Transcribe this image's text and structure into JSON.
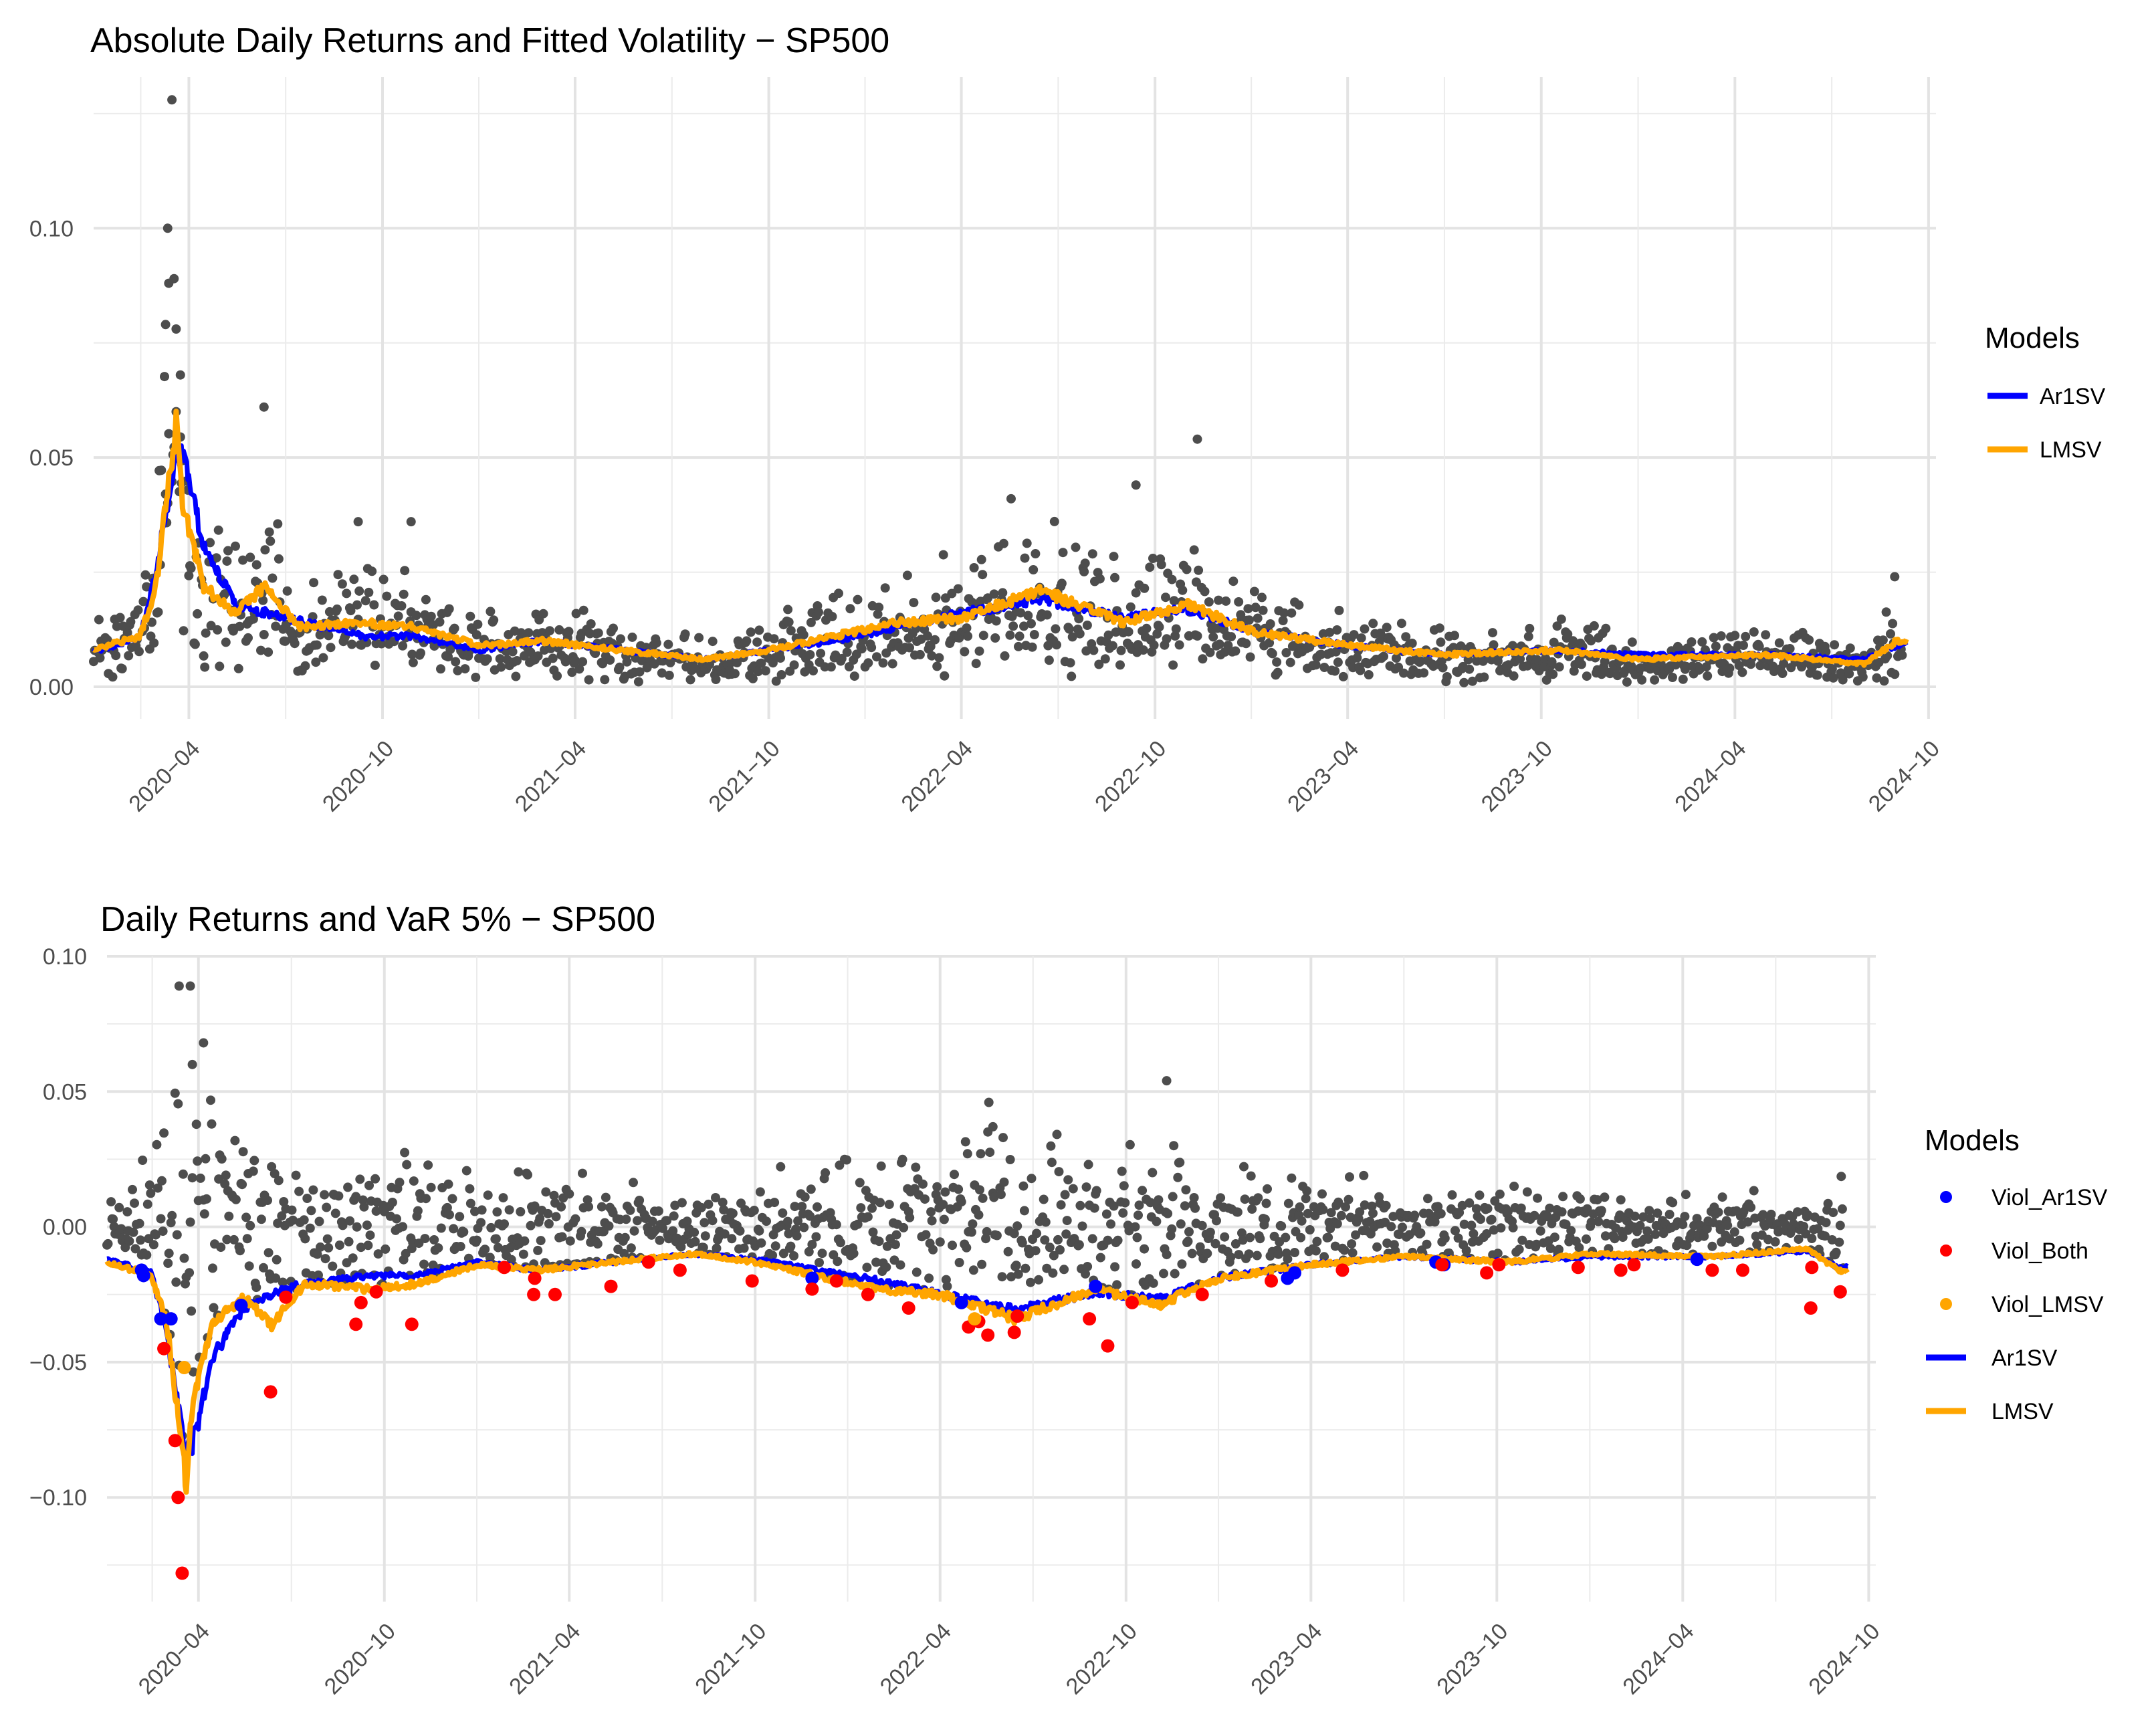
{
  "chart_data": [
    {
      "type": "scatter",
      "title": "Absolute Daily Returns and Fitted Volatility − SP500",
      "xlabel": "",
      "ylabel": "",
      "x_ticks": [
        "2020−04",
        "2020−10",
        "2021−04",
        "2021−10",
        "2022−04",
        "2022−10",
        "2023−04",
        "2023−10",
        "2024−04",
        "2024−10"
      ],
      "y_ticks": [
        "0.00",
        "0.05",
        "0.10"
      ],
      "ylim": [
        -0.007,
        0.133
      ],
      "xlim": [
        "2020-01-02",
        "2024-10-08"
      ],
      "grid": true,
      "legend": {
        "title": "Models",
        "position": "right",
        "entries": [
          {
            "name": "Ar1SV",
            "color": "#0000ff",
            "kind": "line"
          },
          {
            "name": "LMSV",
            "color": "#ffa500",
            "kind": "line"
          }
        ]
      },
      "points_color": "#4d4d4d",
      "highlight_points": [
        {
          "x": "2020-03-16",
          "y": 0.128
        },
        {
          "x": "2020-03-12",
          "y": 0.1
        },
        {
          "x": "2020-03-18",
          "y": 0.089
        },
        {
          "x": "2020-03-13",
          "y": 0.088
        },
        {
          "x": "2020-03-10",
          "y": 0.079
        },
        {
          "x": "2020-03-24",
          "y": 0.068
        },
        {
          "x": "2020-06-11",
          "y": 0.061
        },
        {
          "x": "2020-03-20",
          "y": 0.06
        },
        {
          "x": "2022-11-10",
          "y": 0.054
        },
        {
          "x": "2022-09-13",
          "y": 0.044
        },
        {
          "x": "2022-05-18",
          "y": 0.041
        },
        {
          "x": "2020-09-08",
          "y": 0.036
        },
        {
          "x": "2020-10-28",
          "y": 0.036
        },
        {
          "x": "2024-08-30",
          "y": 0.024
        }
      ],
      "series": [
        {
          "name": "Ar1SV",
          "color": "#0000ff",
          "points": [
            [
              "2020-01-02",
              0.0075
            ],
            [
              "2020-02-15",
              0.011
            ],
            [
              "2020-03-01",
              0.025
            ],
            [
              "2020-03-20",
              0.052
            ],
            [
              "2020-03-28",
              0.05
            ],
            [
              "2020-04-15",
              0.03
            ],
            [
              "2020-05-15",
              0.018
            ],
            [
              "2020-07-01",
              0.015
            ],
            [
              "2020-09-15",
              0.011
            ],
            [
              "2020-11-01",
              0.011
            ],
            [
              "2021-01-01",
              0.008
            ],
            [
              "2021-03-01",
              0.01
            ],
            [
              "2021-05-15",
              0.008
            ],
            [
              "2021-08-01",
              0.006
            ],
            [
              "2021-10-01",
              0.008
            ],
            [
              "2021-12-01",
              0.01
            ],
            [
              "2022-02-01",
              0.013
            ],
            [
              "2022-04-01",
              0.016
            ],
            [
              "2022-06-15",
              0.019
            ],
            [
              "2022-09-01",
              0.015
            ],
            [
              "2022-11-01",
              0.017
            ],
            [
              "2023-01-01",
              0.012
            ],
            [
              "2023-04-01",
              0.009
            ],
            [
              "2023-07-01",
              0.007
            ],
            [
              "2023-10-15",
              0.008
            ],
            [
              "2024-01-01",
              0.007
            ],
            [
              "2024-05-01",
              0.007
            ],
            [
              "2024-08-01",
              0.006
            ],
            [
              "2024-09-01",
              0.009
            ]
          ]
        },
        {
          "name": "LMSV",
          "color": "#ffa500",
          "points": [
            [
              "2020-01-02",
              0.008
            ],
            [
              "2020-02-15",
              0.011
            ],
            [
              "2020-03-01",
              0.022
            ],
            [
              "2020-03-20",
              0.058
            ],
            [
              "2020-03-26",
              0.04
            ],
            [
              "2020-04-15",
              0.022
            ],
            [
              "2020-05-15",
              0.016
            ],
            [
              "2020-06-12",
              0.022
            ],
            [
              "2020-07-15",
              0.013
            ],
            [
              "2020-09-15",
              0.014
            ],
            [
              "2020-11-01",
              0.013
            ],
            [
              "2021-01-01",
              0.009
            ],
            [
              "2021-03-01",
              0.01
            ],
            [
              "2021-05-15",
              0.008
            ],
            [
              "2021-08-01",
              0.006
            ],
            [
              "2021-10-01",
              0.008
            ],
            [
              "2021-12-01",
              0.011
            ],
            [
              "2022-02-01",
              0.014
            ],
            [
              "2022-04-01",
              0.015
            ],
            [
              "2022-06-15",
              0.021
            ],
            [
              "2022-09-01",
              0.014
            ],
            [
              "2022-11-01",
              0.018
            ],
            [
              "2023-01-01",
              0.012
            ],
            [
              "2023-04-01",
              0.009
            ],
            [
              "2023-07-01",
              0.007
            ],
            [
              "2023-10-15",
              0.008
            ],
            [
              "2024-01-01",
              0.006
            ],
            [
              "2024-05-01",
              0.007
            ],
            [
              "2024-08-01",
              0.005
            ],
            [
              "2024-09-01",
              0.01
            ]
          ]
        }
      ]
    },
    {
      "type": "scatter",
      "title": "Daily Returns and VaR 5% − SP500",
      "xlabel": "",
      "ylabel": "",
      "x_ticks": [
        "2020−04",
        "2020−10",
        "2021−04",
        "2021−10",
        "2022−04",
        "2022−10",
        "2023−04",
        "2023−10",
        "2024−04",
        "2024−10"
      ],
      "y_ticks": [
        "−0.10",
        "−0.05",
        "0.00",
        "0.05",
        "0.10"
      ],
      "ylim": [
        -0.1385,
        0.1
      ],
      "xlim": [
        "2020-01-02",
        "2024-10-08"
      ],
      "grid": true,
      "legend": {
        "title": "Models",
        "position": "right",
        "entries": [
          {
            "name": "Viol_Ar1SV",
            "color": "#0000ff",
            "kind": "point"
          },
          {
            "name": "Viol_Both",
            "color": "#ff0000",
            "kind": "point"
          },
          {
            "name": "Viol_LMSV",
            "color": "#ffa500",
            "kind": "point"
          },
          {
            "name": "Ar1SV",
            "color": "#0000ff",
            "kind": "line"
          },
          {
            "name": "LMSV",
            "color": "#ffa500",
            "kind": "line"
          }
        ]
      },
      "points_color": "#4d4d4d",
      "highlight_points": [
        {
          "x": "2020-03-13",
          "y": 0.089
        },
        {
          "x": "2020-03-24",
          "y": 0.089
        },
        {
          "x": "2020-04-06",
          "y": 0.068
        },
        {
          "x": "2020-03-26",
          "y": 0.06
        },
        {
          "x": "2022-11-10",
          "y": 0.054
        },
        {
          "x": "2022-05-23",
          "y": 0.037
        }
      ],
      "violations": {
        "Viol_Ar1SV": [
          [
            "2020-02-24",
            -0.034
          ],
          [
            "2020-02-05",
            -0.016
          ],
          [
            "2020-02-07",
            -0.018
          ],
          [
            "2020-03-05",
            -0.034
          ],
          [
            "2020-05-13",
            -0.029
          ],
          [
            "2020-06-26",
            -0.024
          ],
          [
            "2021-11-26",
            -0.019
          ],
          [
            "2022-04-22",
            -0.028
          ],
          [
            "2022-09-01",
            -0.022
          ],
          [
            "2023-03-09",
            -0.019
          ],
          [
            "2023-03-16",
            -0.017
          ],
          [
            "2023-08-02",
            -0.013
          ],
          [
            "2023-08-10",
            -0.014
          ],
          [
            "2024-04-15",
            -0.012
          ]
        ],
        "Viol_Both": [
          [
            "2020-02-27",
            -0.045
          ],
          [
            "2020-03-09",
            -0.079
          ],
          [
            "2020-03-12",
            -0.1
          ],
          [
            "2020-03-16",
            -0.128
          ],
          [
            "2020-06-11",
            -0.061
          ],
          [
            "2020-06-26",
            -0.026
          ],
          [
            "2020-09-03",
            -0.036
          ],
          [
            "2020-09-08",
            -0.028
          ],
          [
            "2020-09-23",
            -0.024
          ],
          [
            "2020-10-28",
            -0.036
          ],
          [
            "2021-01-27",
            -0.015
          ],
          [
            "2021-02-25",
            -0.025
          ],
          [
            "2021-02-26",
            -0.019
          ],
          [
            "2021-03-18",
            -0.025
          ],
          [
            "2021-05-12",
            -0.022
          ],
          [
            "2021-06-18",
            -0.013
          ],
          [
            "2021-07-19",
            -0.016
          ],
          [
            "2021-09-28",
            -0.02
          ],
          [
            "2021-11-26",
            -0.023
          ],
          [
            "2021-12-20",
            -0.02
          ],
          [
            "2022-01-20",
            -0.025
          ],
          [
            "2022-03-01",
            -0.03
          ],
          [
            "2022-04-29",
            -0.037
          ],
          [
            "2022-05-09",
            -0.035
          ],
          [
            "2022-05-18",
            -0.04
          ],
          [
            "2022-06-13",
            -0.039
          ],
          [
            "2022-06-16",
            -0.033
          ],
          [
            "2022-08-26",
            -0.034
          ],
          [
            "2022-09-13",
            -0.044
          ],
          [
            "2022-10-07",
            -0.028
          ],
          [
            "2022-12-15",
            -0.025
          ],
          [
            "2023-02-21",
            -0.02
          ],
          [
            "2023-05-02",
            -0.016
          ],
          [
            "2023-08-08",
            -0.014
          ],
          [
            "2023-09-21",
            -0.017
          ],
          [
            "2023-10-03",
            -0.014
          ],
          [
            "2023-12-20",
            -0.015
          ],
          [
            "2024-01-31",
            -0.016
          ],
          [
            "2024-02-13",
            -0.014
          ],
          [
            "2024-04-30",
            -0.016
          ],
          [
            "2024-05-30",
            -0.016
          ],
          [
            "2024-08-05",
            -0.03
          ],
          [
            "2024-08-06",
            -0.015
          ],
          [
            "2024-09-03",
            -0.024
          ]
        ],
        "Viol_LMSV": [
          [
            "2020-03-18",
            -0.052
          ],
          [
            "2022-05-05",
            -0.034
          ]
        ]
      },
      "series": [
        {
          "name": "Ar1SV",
          "color": "#0000ff",
          "points": [
            [
              "2020-01-02",
              -0.012
            ],
            [
              "2020-02-15",
              -0.017
            ],
            [
              "2020-03-01",
              -0.04
            ],
            [
              "2020-03-20",
              -0.086
            ],
            [
              "2020-03-30",
              -0.075
            ],
            [
              "2020-04-15",
              -0.048
            ],
            [
              "2020-05-15",
              -0.03
            ],
            [
              "2020-07-01",
              -0.022
            ],
            [
              "2020-09-15",
              -0.018
            ],
            [
              "2020-11-01",
              -0.018
            ],
            [
              "2021-01-01",
              -0.013
            ],
            [
              "2021-03-01",
              -0.016
            ],
            [
              "2021-05-15",
              -0.013
            ],
            [
              "2021-08-01",
              -0.01
            ],
            [
              "2021-10-01",
              -0.012
            ],
            [
              "2021-12-01",
              -0.016
            ],
            [
              "2022-02-01",
              -0.02
            ],
            [
              "2022-04-01",
              -0.025
            ],
            [
              "2022-06-15",
              -0.031
            ],
            [
              "2022-09-01",
              -0.024
            ],
            [
              "2022-11-01",
              -0.027
            ],
            [
              "2023-01-01",
              -0.019
            ],
            [
              "2023-04-01",
              -0.014
            ],
            [
              "2023-07-01",
              -0.011
            ],
            [
              "2023-10-15",
              -0.013
            ],
            [
              "2024-01-01",
              -0.011
            ],
            [
              "2024-05-01",
              -0.011
            ],
            [
              "2024-08-01",
              -0.009
            ],
            [
              "2024-09-01",
              -0.015
            ]
          ]
        },
        {
          "name": "LMSV",
          "color": "#ffa500",
          "points": [
            [
              "2020-01-02",
              -0.013
            ],
            [
              "2020-02-15",
              -0.018
            ],
            [
              "2020-03-01",
              -0.036
            ],
            [
              "2020-03-20",
              -0.095
            ],
            [
              "2020-03-26",
              -0.065
            ],
            [
              "2020-04-15",
              -0.036
            ],
            [
              "2020-05-15",
              -0.026
            ],
            [
              "2020-06-12",
              -0.036
            ],
            [
              "2020-07-15",
              -0.021
            ],
            [
              "2020-09-15",
              -0.023
            ],
            [
              "2020-11-01",
              -0.021
            ],
            [
              "2021-01-01",
              -0.014
            ],
            [
              "2021-03-01",
              -0.016
            ],
            [
              "2021-05-15",
              -0.013
            ],
            [
              "2021-08-01",
              -0.01
            ],
            [
              "2021-10-01",
              -0.013
            ],
            [
              "2021-12-01",
              -0.018
            ],
            [
              "2022-02-01",
              -0.023
            ],
            [
              "2022-04-01",
              -0.025
            ],
            [
              "2022-06-15",
              -0.034
            ],
            [
              "2022-09-01",
              -0.023
            ],
            [
              "2022-11-01",
              -0.029
            ],
            [
              "2023-01-01",
              -0.019
            ],
            [
              "2023-04-01",
              -0.014
            ],
            [
              "2023-07-01",
              -0.011
            ],
            [
              "2023-10-15",
              -0.013
            ],
            [
              "2024-01-01",
              -0.01
            ],
            [
              "2024-05-01",
              -0.011
            ],
            [
              "2024-08-01",
              -0.008
            ],
            [
              "2024-09-01",
              -0.016
            ]
          ]
        }
      ]
    }
  ]
}
